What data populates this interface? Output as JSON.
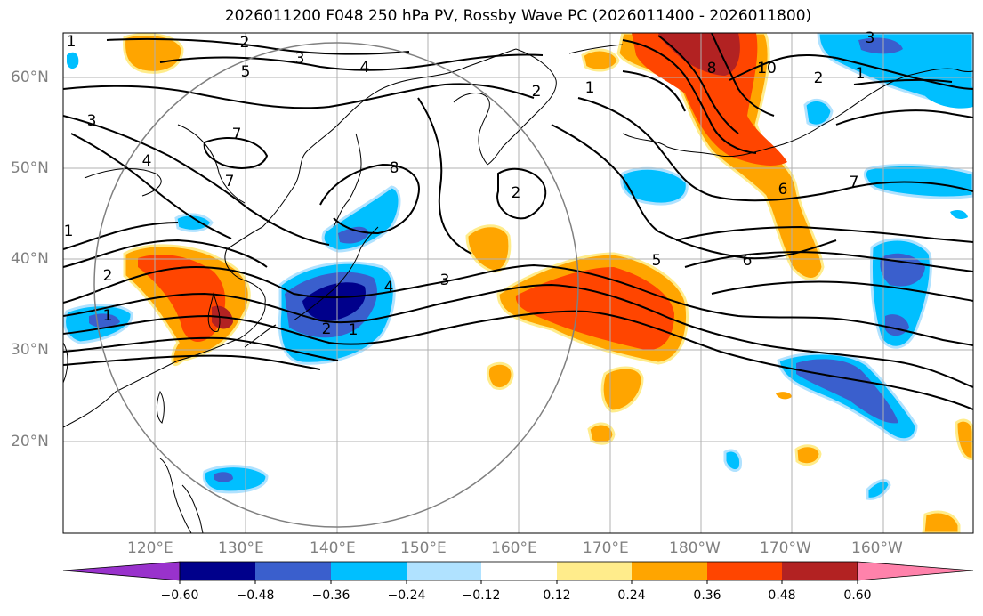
{
  "title": "2026011200 F048 250 hPa PV, Rossby Wave PC (2026011400 - 2026011800)",
  "map": {
    "lat_labels": [
      "60°N",
      "50°N",
      "40°N",
      "30°N",
      "20°N"
    ],
    "lon_labels": [
      "120°E",
      "130°E",
      "140°E",
      "150°E",
      "160°E",
      "170°E",
      "180°W",
      "170°W",
      "160°W"
    ],
    "contour_labels": [
      "2",
      "3",
      "4",
      "5",
      "1",
      "3",
      "7",
      "7",
      "4",
      "8",
      "2",
      "2",
      "1",
      "2",
      "3",
      "4",
      "1",
      "5",
      "6",
      "6",
      "7",
      "8",
      "10",
      "1",
      "2",
      "1",
      "2",
      "3",
      "1"
    ]
  },
  "colorbar": {
    "ticks": [
      "−0.60",
      "−0.48",
      "−0.36",
      "−0.24",
      "−0.12",
      "0.12",
      "0.24",
      "0.36",
      "0.48",
      "0.60"
    ],
    "colors": [
      "#9932cc",
      "#00008b",
      "#3a5fcd",
      "#00bfff",
      "#b0e2ff",
      "#ffffff",
      "#ffec8b",
      "#ffa500",
      "#ff4500",
      "#b22222",
      "#ff82ab"
    ]
  }
}
